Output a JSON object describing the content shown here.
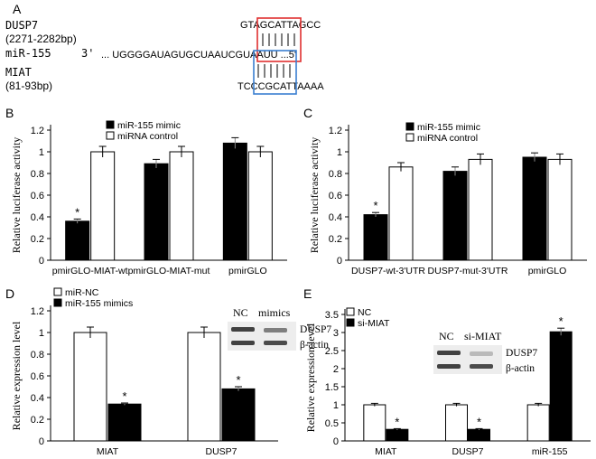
{
  "sequence": {
    "label": "A",
    "dusp7_name": "DUSP7",
    "dusp7_range": "(2271-2282bp)",
    "dusp7_seq": "GTAGCATTAGCC",
    "mir_name": "miR-155",
    "mir_3prime": "3'",
    "mir_seq": "... UGGGGAUAGUGCUAAUCGUAAUU ...5'",
    "miat_name": "MIAT",
    "miat_range": "(81-93bp)",
    "miat_seq": "TCCCGCATTAAAA",
    "red_box_color": "#e03030",
    "blue_box_color": "#3a7fd0"
  },
  "blot_D": {
    "col1": "NC",
    "col2": "mimics",
    "band1": "DUSP7",
    "band2": "β-actin"
  },
  "blot_E": {
    "col1": "NC",
    "col2": "si-MIAT",
    "band1": "DUSP7",
    "band2": "β-actin"
  },
  "chart_data": [
    {
      "panel": "B",
      "type": "bar",
      "ylabel": "Relative luciferase activity",
      "categories": [
        "pmirGLO-MIAT-wt",
        "pmirGLO-MIAT-mut",
        "pmirGLO"
      ],
      "series": [
        {
          "name": "miR-155 mimic",
          "values": [
            0.36,
            0.89,
            1.08
          ],
          "errors": [
            0.02,
            0.04,
            0.05
          ],
          "fill": "#000000"
        },
        {
          "name": "miRNA control",
          "values": [
            1.0,
            1.0,
            1.0
          ],
          "errors": [
            0.05,
            0.05,
            0.05
          ],
          "fill": "#ffffff"
        }
      ],
      "ylim": [
        0,
        1.2
      ],
      "yticks": [
        "0",
        "0.2",
        "0.4",
        "0.6",
        "0.8",
        "1",
        "1.2"
      ],
      "significance": [
        {
          "category": 0,
          "series": 0,
          "mark": "*"
        }
      ],
      "legend": "top-left"
    },
    {
      "panel": "C",
      "type": "bar",
      "ylabel": "Relative luciferase activity",
      "categories": [
        "DUSP7-wt-3'UTR",
        "DUSP7-mut-3'UTR",
        "pmirGLO"
      ],
      "series": [
        {
          "name": "miR-155 mimic",
          "values": [
            0.42,
            0.82,
            0.95
          ],
          "errors": [
            0.02,
            0.04,
            0.04
          ],
          "fill": "#000000"
        },
        {
          "name": "miRNA control",
          "values": [
            0.86,
            0.93,
            0.93
          ],
          "errors": [
            0.04,
            0.05,
            0.05
          ],
          "fill": "#ffffff"
        }
      ],
      "ylim": [
        0,
        1.2
      ],
      "yticks": [
        "0",
        "0.2",
        "0.4",
        "0.6",
        "0.8",
        "1",
        "1.2"
      ],
      "significance": [
        {
          "category": 0,
          "series": 0,
          "mark": "*"
        }
      ],
      "legend": "top-left"
    },
    {
      "panel": "D",
      "type": "bar",
      "ylabel": "Relative expression level",
      "categories": [
        "MIAT",
        "DUSP7"
      ],
      "series": [
        {
          "name": "miR-NC",
          "values": [
            1.0,
            1.0
          ],
          "errors": [
            0.05,
            0.05
          ],
          "fill": "#ffffff"
        },
        {
          "name": "miR-155 mimics",
          "values": [
            0.34,
            0.48
          ],
          "errors": [
            0.01,
            0.02
          ],
          "fill": "#000000"
        }
      ],
      "ylim": [
        0,
        1.2
      ],
      "yticks": [
        "0",
        "0.2",
        "0.4",
        "0.6",
        "0.8",
        "1",
        "1.2"
      ],
      "significance": [
        {
          "category": 0,
          "series": 1,
          "mark": "*"
        },
        {
          "category": 1,
          "series": 1,
          "mark": "*"
        }
      ],
      "legend": "top-left"
    },
    {
      "panel": "E",
      "type": "bar",
      "ylabel": "Relative expression level",
      "categories": [
        "MIAT",
        "DUSP7",
        "miR-155"
      ],
      "series": [
        {
          "name": "NC",
          "values": [
            1.0,
            1.0,
            1.0
          ],
          "errors": [
            0.04,
            0.04,
            0.04
          ],
          "fill": "#ffffff"
        },
        {
          "name": "si-MIAT",
          "values": [
            0.32,
            0.32,
            3.02
          ],
          "errors": [
            0.02,
            0.02,
            0.1
          ],
          "fill": "#000000"
        }
      ],
      "ylim": [
        0,
        3.5
      ],
      "yticks": [
        "0",
        "0.5",
        "1",
        "1.5",
        "2",
        "2.5",
        "3",
        "3.5"
      ],
      "significance": [
        {
          "category": 0,
          "series": 1,
          "mark": "*"
        },
        {
          "category": 1,
          "series": 1,
          "mark": "*"
        },
        {
          "category": 2,
          "series": 1,
          "mark": "*"
        }
      ],
      "legend": "top-left"
    }
  ]
}
